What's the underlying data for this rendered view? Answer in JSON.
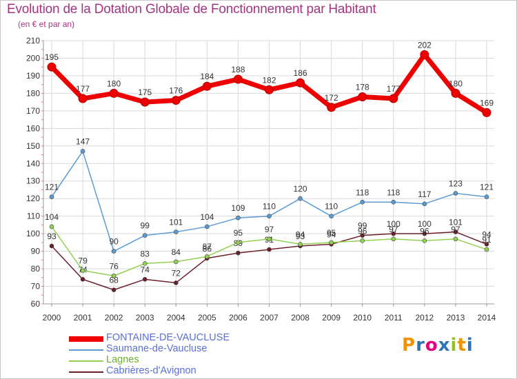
{
  "chart_data": {
    "type": "line",
    "title": "Evolution de la Dotation Globale de Fonctionnement par Habitant",
    "subtitle": "(en € et par an)",
    "x": [
      "2000",
      "2001",
      "2002",
      "2003",
      "2004",
      "2005",
      "2006",
      "2007",
      "2008",
      "2009",
      "2010",
      "2011",
      "2012",
      "2013",
      "2014"
    ],
    "ylim": [
      60,
      210
    ],
    "yticks": [
      60,
      70,
      80,
      90,
      100,
      110,
      120,
      130,
      140,
      150,
      160,
      170,
      180,
      190,
      200,
      210
    ],
    "grid": true,
    "legend_position": "bottom-left",
    "series": [
      {
        "name": "FONTAINE-DE-VAUCLUSE",
        "color": "#ee0000",
        "values": [
          195,
          177,
          180,
          175,
          176,
          184,
          188,
          182,
          186,
          172,
          178,
          177,
          202,
          180,
          169
        ]
      },
      {
        "name": "Saumane-de-Vaucluse",
        "color": "#5b9bd5",
        "values": [
          121,
          147,
          90,
          99,
          101,
          104,
          109,
          110,
          120,
          110,
          118,
          118,
          117,
          123,
          121
        ]
      },
      {
        "name": "Lagnes",
        "color": "#92d050",
        "values": [
          104,
          79,
          76,
          83,
          84,
          87,
          95,
          97,
          94,
          95,
          96,
          97,
          96,
          97,
          91
        ]
      },
      {
        "name": "Cabrières-d'Avignon",
        "color": "#6b1f2a",
        "values": [
          93,
          74,
          68,
          74,
          72,
          86,
          89,
          91,
          93,
          94,
          99,
          100,
          100,
          101,
          94
        ]
      }
    ]
  },
  "logo": {
    "text": "Proxiti",
    "colors": [
      "#f39200",
      "#2e75b6",
      "#e6007e",
      "#2e75b6",
      "#95c11f",
      "#f39200",
      "#2e75b6"
    ]
  }
}
